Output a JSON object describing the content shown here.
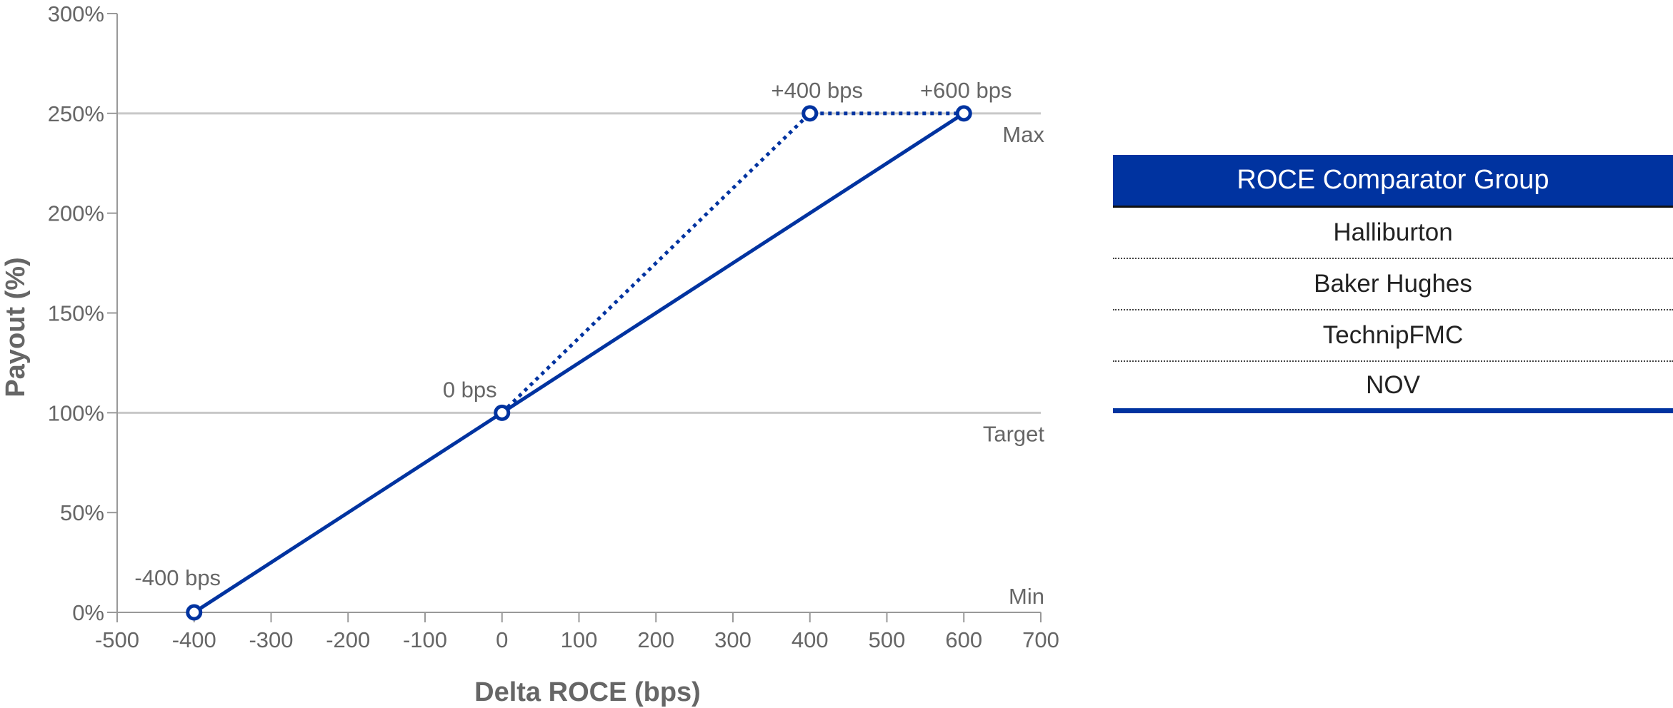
{
  "chart_data": {
    "type": "line",
    "xlabel": "Delta ROCE (bps)",
    "ylabel": "Payout (%)",
    "xlim": [
      -500,
      700
    ],
    "ylim": [
      0,
      300
    ],
    "x_ticks": [
      -500,
      -400,
      -300,
      -200,
      -100,
      0,
      100,
      200,
      300,
      400,
      500,
      600,
      700
    ],
    "x_tick_labels": [
      "-500",
      "-400",
      "-300",
      "-200",
      "-100",
      "0",
      "100",
      "200",
      "300",
      "400",
      "500",
      "600",
      "700"
    ],
    "y_ticks": [
      0,
      50,
      100,
      150,
      200,
      250,
      300
    ],
    "y_tick_labels": [
      "0%",
      "50%",
      "100%",
      "150%",
      "200%",
      "250%",
      "300%"
    ],
    "reference_lines": [
      {
        "y": 250,
        "label": "Max"
      },
      {
        "y": 100,
        "label": "Target"
      },
      {
        "y": 0,
        "label": "Min"
      }
    ],
    "series": [
      {
        "style": "solid",
        "x": [
          -400,
          0,
          600
        ],
        "y": [
          0,
          100,
          250
        ]
      },
      {
        "style": "dotted",
        "x": [
          0,
          400,
          600
        ],
        "y": [
          100,
          250,
          250
        ]
      }
    ],
    "points": [
      {
        "x": -400,
        "y": 0,
        "label": "-400 bps"
      },
      {
        "x": 0,
        "y": 100,
        "label": "0 bps"
      },
      {
        "x": 400,
        "y": 250,
        "label": "+400 bps"
      },
      {
        "x": 600,
        "y": 250,
        "label": "+600 bps"
      }
    ],
    "colors": {
      "line": "#0033A0",
      "grid": "#c8c8c8",
      "axis": "#999999",
      "text": "#666666"
    }
  },
  "table": {
    "title": "ROCE Comparator Group",
    "rows": [
      "Halliburton",
      "Baker Hughes",
      "TechnipFMC",
      "NOV"
    ]
  }
}
